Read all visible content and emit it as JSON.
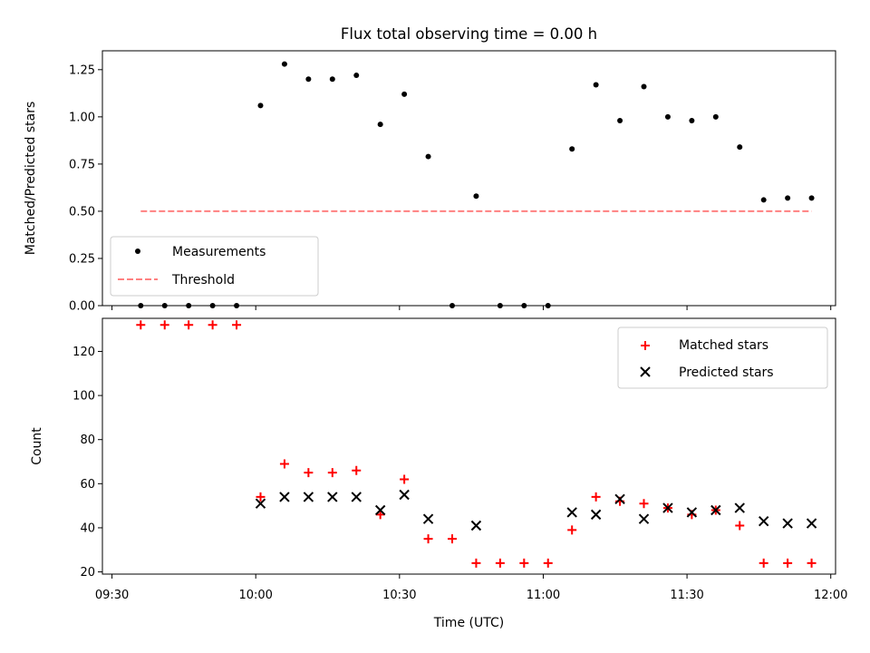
{
  "chart_data": [
    {
      "type": "scatter",
      "title": "Flux total observing time = 0.00 h",
      "xlabel": "",
      "ylabel": "Matched/Predicted stars",
      "ylim": [
        0,
        1.35
      ],
      "yticks": [
        "0.00",
        "0.25",
        "0.50",
        "0.75",
        "1.00",
        "1.25"
      ],
      "xlim_minutes": [
        -2,
        151
      ],
      "legend": "bottom-left",
      "series": [
        {
          "name": "Measurements",
          "color": "#000000",
          "marker": "dot",
          "x": [
            "09:36",
            "09:41",
            "09:46",
            "09:51",
            "09:56",
            "10:01",
            "10:06",
            "10:11",
            "10:16",
            "10:21",
            "10:26",
            "10:31",
            "10:36",
            "10:41",
            "10:46",
            "10:51",
            "10:56",
            "11:01",
            "11:06",
            "11:11",
            "11:16",
            "11:21",
            "11:26",
            "11:31",
            "11:36",
            "11:41",
            "11:46",
            "11:51",
            "11:56"
          ],
          "values": [
            0,
            0,
            0,
            0,
            0,
            1.06,
            1.28,
            1.2,
            1.2,
            1.22,
            0.96,
            1.12,
            0.79,
            0,
            0.58,
            0,
            0,
            0,
            0.83,
            1.17,
            0.98,
            1.16,
            1.0,
            0.98,
            1.0,
            0.84,
            0.56,
            0.57,
            0.57
          ]
        },
        {
          "name": "Threshold",
          "color": "#ff8080",
          "marker": "dashed-line",
          "x": [
            "09:36",
            "11:56"
          ],
          "values": [
            0.5,
            0.5
          ]
        }
      ]
    },
    {
      "type": "scatter",
      "title": "",
      "xlabel": "Time (UTC)",
      "ylabel": "Count",
      "ylim": [
        19,
        135
      ],
      "yticks": [
        "20",
        "40",
        "60",
        "80",
        "100",
        "120"
      ],
      "xticks": [
        "09:30",
        "10:00",
        "10:30",
        "11:00",
        "11:30",
        "12:00"
      ],
      "legend": "top-right",
      "series": [
        {
          "name": "Matched stars",
          "color": "#ff0000",
          "marker": "plus",
          "x": [
            "09:36",
            "09:41",
            "09:46",
            "09:51",
            "09:56",
            "10:01",
            "10:06",
            "10:11",
            "10:16",
            "10:21",
            "10:26",
            "10:31",
            "10:36",
            "10:41",
            "10:46",
            "10:51",
            "10:56",
            "11:01",
            "11:06",
            "11:11",
            "11:16",
            "11:21",
            "11:26",
            "11:31",
            "11:36",
            "11:41",
            "11:46",
            "11:51",
            "11:56"
          ],
          "values": [
            132,
            132,
            132,
            132,
            132,
            54,
            69,
            65,
            65,
            66,
            46,
            62,
            35,
            35,
            24,
            24,
            24,
            24,
            39,
            54,
            52,
            51,
            49,
            46,
            48,
            41,
            24,
            24,
            24
          ]
        },
        {
          "name": "Predicted stars",
          "color": "#000000",
          "marker": "x",
          "x": [
            "10:01",
            "10:06",
            "10:11",
            "10:16",
            "10:21",
            "10:26",
            "10:31",
            "10:36",
            "10:46",
            "11:06",
            "11:11",
            "11:16",
            "11:21",
            "11:26",
            "11:31",
            "11:36",
            "11:41",
            "11:46",
            "11:51",
            "11:56"
          ],
          "values": [
            51,
            54,
            54,
            54,
            54,
            48,
            55,
            44,
            41,
            47,
            46,
            53,
            44,
            49,
            47,
            48,
            49,
            43,
            42,
            42
          ]
        }
      ]
    }
  ]
}
